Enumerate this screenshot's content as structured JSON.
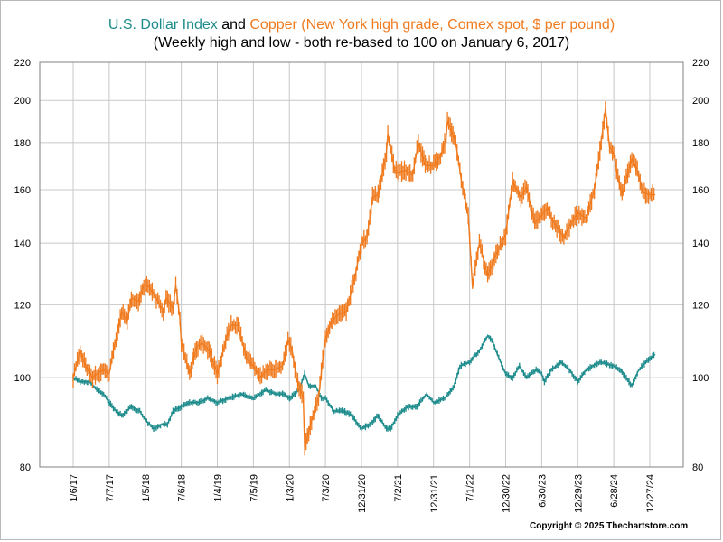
{
  "title": {
    "part1": "U.S. Dollar Index",
    "part2": " and ",
    "part3": "Copper (New York high grade, Comex spot, $ per pound)"
  },
  "subtitle": "(Weekly high and low - both re-based to 100 on January 6, 2017)",
  "copyright": "Copyright © 2025 Thechartstore.com",
  "colors": {
    "dollar": "#1e8c8c",
    "copper": "#f07a1e",
    "grid": "#c8c8c8"
  },
  "chart_data": {
    "type": "line",
    "y_scale": "log",
    "ylim": [
      80,
      220
    ],
    "y_ticks": [
      80,
      100,
      120,
      140,
      160,
      180,
      200,
      220
    ],
    "x_ticks": [
      "1/6/17",
      "7/7/17",
      "1/5/18",
      "7/6/18",
      "1/4/19",
      "7/5/19",
      "1/3/20",
      "7/3/20",
      "12/31/20",
      "7/2/21",
      "12/31/21",
      "7/1/22",
      "12/30/22",
      "6/30/23",
      "12/29/23",
      "6/28/24",
      "12/27/24"
    ],
    "x_range": [
      "2017-01-06",
      "2025-01-24"
    ],
    "grid": true,
    "series": [
      {
        "name": "U.S. Dollar Index",
        "color": "#1e8c8c",
        "points": [
          [
            "2017-01-06",
            100
          ],
          [
            "2017-02-10",
            99
          ],
          [
            "2017-03-31",
            99
          ],
          [
            "2017-05-05",
            97
          ],
          [
            "2017-06-09",
            96
          ],
          [
            "2017-07-07",
            94
          ],
          [
            "2017-08-11",
            92
          ],
          [
            "2017-09-08",
            91
          ],
          [
            "2017-10-27",
            93
          ],
          [
            "2017-12-08",
            92
          ],
          [
            "2018-01-05",
            90
          ],
          [
            "2018-02-16",
            88
          ],
          [
            "2018-03-30",
            89
          ],
          [
            "2018-04-27",
            89
          ],
          [
            "2018-05-25",
            92
          ],
          [
            "2018-07-06",
            93
          ],
          [
            "2018-08-17",
            94
          ],
          [
            "2018-10-05",
            94
          ],
          [
            "2018-11-16",
            95
          ],
          [
            "2019-01-04",
            94
          ],
          [
            "2019-03-01",
            95
          ],
          [
            "2019-05-03",
            96
          ],
          [
            "2019-07-05",
            95
          ],
          [
            "2019-09-06",
            97
          ],
          [
            "2019-10-25",
            96
          ],
          [
            "2019-12-06",
            96
          ],
          [
            "2020-01-03",
            95
          ],
          [
            "2020-02-21",
            97
          ],
          [
            "2020-03-13",
            100
          ],
          [
            "2020-03-20",
            101
          ],
          [
            "2020-04-10",
            98
          ],
          [
            "2020-05-15",
            98
          ],
          [
            "2020-06-12",
            95
          ],
          [
            "2020-07-03",
            95
          ],
          [
            "2020-08-14",
            92
          ],
          [
            "2020-10-02",
            92
          ],
          [
            "2020-11-13",
            91
          ],
          [
            "2020-12-31",
            88
          ],
          [
            "2021-02-12",
            89
          ],
          [
            "2021-03-26",
            91
          ],
          [
            "2021-05-07",
            88
          ],
          [
            "2021-05-28",
            88
          ],
          [
            "2021-07-02",
            91
          ],
          [
            "2021-08-20",
            93
          ],
          [
            "2021-10-08",
            93
          ],
          [
            "2021-11-26",
            96
          ],
          [
            "2021-12-31",
            94
          ],
          [
            "2022-02-25",
            95
          ],
          [
            "2022-04-15",
            98
          ],
          [
            "2022-05-13",
            103
          ],
          [
            "2022-07-01",
            104
          ],
          [
            "2022-08-19",
            107
          ],
          [
            "2022-09-30",
            111
          ],
          [
            "2022-10-21",
            110
          ],
          [
            "2022-11-18",
            106
          ],
          [
            "2022-12-30",
            101
          ],
          [
            "2023-02-03",
            100
          ],
          [
            "2023-03-10",
            103
          ],
          [
            "2023-04-14",
            100
          ],
          [
            "2023-06-02",
            102
          ],
          [
            "2023-06-30",
            101
          ],
          [
            "2023-07-14",
            99
          ],
          [
            "2023-08-18",
            102
          ],
          [
            "2023-10-06",
            104
          ],
          [
            "2023-11-17",
            102
          ],
          [
            "2023-12-29",
            99
          ],
          [
            "2024-02-09",
            102
          ],
          [
            "2024-04-19",
            104
          ],
          [
            "2024-06-28",
            103
          ],
          [
            "2024-08-02",
            102
          ],
          [
            "2024-09-27",
            98
          ],
          [
            "2024-11-01",
            102
          ],
          [
            "2024-12-27",
            105
          ],
          [
            "2025-01-24",
            106
          ]
        ]
      },
      {
        "name": "Copper (New York high grade, Comex spot, $ per pound)",
        "color": "#f07a1e",
        "points": [
          [
            "2017-01-06",
            100
          ],
          [
            "2017-02-10",
            107
          ],
          [
            "2017-03-10",
            103
          ],
          [
            "2017-04-14",
            100
          ],
          [
            "2017-05-05",
            101
          ],
          [
            "2017-06-09",
            102
          ],
          [
            "2017-07-07",
            101
          ],
          [
            "2017-07-28",
            107
          ],
          [
            "2017-08-25",
            114
          ],
          [
            "2017-09-08",
            118
          ],
          [
            "2017-10-06",
            115
          ],
          [
            "2017-10-27",
            122
          ],
          [
            "2017-12-01",
            121
          ],
          [
            "2017-12-29",
            126
          ],
          [
            "2018-01-19",
            126
          ],
          [
            "2018-03-02",
            122
          ],
          [
            "2018-04-06",
            118
          ],
          [
            "2018-04-20",
            122
          ],
          [
            "2018-05-25",
            119
          ],
          [
            "2018-06-08",
            126
          ],
          [
            "2018-06-29",
            116
          ],
          [
            "2018-07-06",
            109
          ],
          [
            "2018-08-17",
            101
          ],
          [
            "2018-09-21",
            108
          ],
          [
            "2018-10-19",
            109
          ],
          [
            "2018-11-23",
            107
          ],
          [
            "2019-01-04",
            101
          ],
          [
            "2019-02-22",
            111
          ],
          [
            "2019-03-15",
            114
          ],
          [
            "2019-04-19",
            114
          ],
          [
            "2019-05-31",
            105
          ],
          [
            "2019-07-05",
            103
          ],
          [
            "2019-08-09",
            100
          ],
          [
            "2019-09-13",
            102
          ],
          [
            "2019-10-18",
            102
          ],
          [
            "2019-11-29",
            103
          ],
          [
            "2019-12-27",
            110
          ],
          [
            "2020-01-17",
            107
          ],
          [
            "2020-02-07",
            100
          ],
          [
            "2020-03-13",
            95
          ],
          [
            "2020-03-20",
            84
          ],
          [
            "2020-04-24",
            90
          ],
          [
            "2020-05-29",
            95
          ],
          [
            "2020-06-26",
            108
          ],
          [
            "2020-07-03",
            110
          ],
          [
            "2020-07-31",
            115
          ],
          [
            "2020-09-04",
            117
          ],
          [
            "2020-10-16",
            118
          ],
          [
            "2020-11-27",
            128
          ],
          [
            "2020-12-31",
            140
          ],
          [
            "2021-01-29",
            142
          ],
          [
            "2021-02-26",
            157
          ],
          [
            "2021-03-26",
            158
          ],
          [
            "2021-05-07",
            176
          ],
          [
            "2021-05-14",
            184
          ],
          [
            "2021-06-18",
            168
          ],
          [
            "2021-07-02",
            167
          ],
          [
            "2021-08-13",
            168
          ],
          [
            "2021-09-17",
            166
          ],
          [
            "2021-10-15",
            180
          ],
          [
            "2021-11-19",
            170
          ],
          [
            "2021-12-31",
            170
          ],
          [
            "2022-02-04",
            174
          ],
          [
            "2022-03-04",
            182
          ],
          [
            "2022-03-11",
            190
          ],
          [
            "2022-04-22",
            180
          ],
          [
            "2022-05-20",
            164
          ],
          [
            "2022-06-24",
            150
          ],
          [
            "2022-07-15",
            126
          ],
          [
            "2022-08-19",
            140
          ],
          [
            "2022-09-30",
            129
          ],
          [
            "2022-11-04",
            135
          ],
          [
            "2022-12-30",
            143
          ],
          [
            "2023-01-20",
            155
          ],
          [
            "2023-02-03",
            163
          ],
          [
            "2023-03-17",
            157
          ],
          [
            "2023-04-14",
            161
          ],
          [
            "2023-05-26",
            147
          ],
          [
            "2023-06-30",
            150
          ],
          [
            "2023-07-28",
            153
          ],
          [
            "2023-08-25",
            148
          ],
          [
            "2023-09-22",
            145
          ],
          [
            "2023-10-20",
            142
          ],
          [
            "2023-11-24",
            147
          ],
          [
            "2023-12-29",
            151
          ],
          [
            "2024-02-09",
            149
          ],
          [
            "2024-03-22",
            160
          ],
          [
            "2024-04-19",
            176
          ],
          [
            "2024-05-17",
            196
          ],
          [
            "2024-06-07",
            178
          ],
          [
            "2024-06-28",
            175
          ],
          [
            "2024-07-26",
            162
          ],
          [
            "2024-08-09",
            158
          ],
          [
            "2024-09-27",
            173
          ],
          [
            "2024-10-25",
            168
          ],
          [
            "2024-11-22",
            159
          ],
          [
            "2024-12-27",
            158
          ],
          [
            "2025-01-24",
            158
          ]
        ]
      }
    ]
  }
}
